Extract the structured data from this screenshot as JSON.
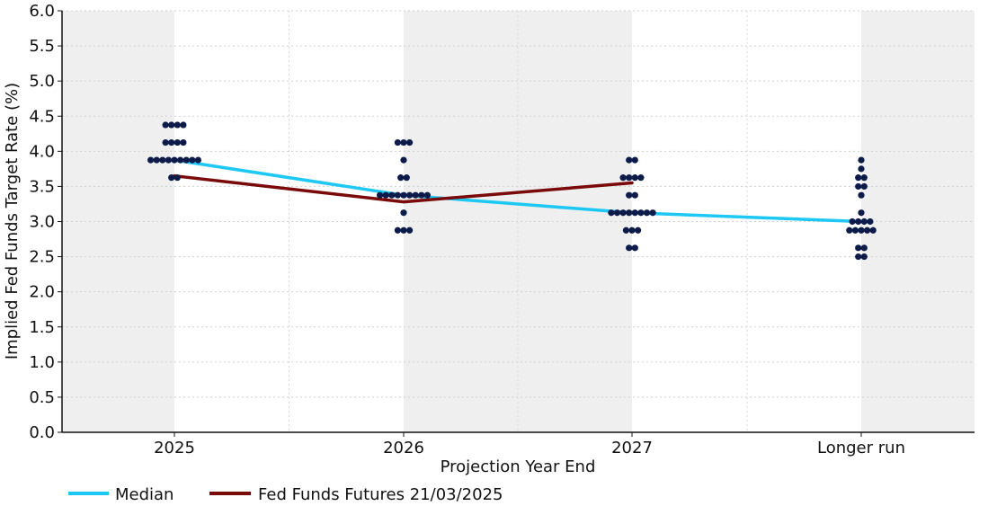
{
  "chart_data": {
    "type": "scatter",
    "title": "",
    "xlabel": "Projection Year End",
    "ylabel": "Implied Fed Funds Target Rate (%)",
    "categories": [
      "2025",
      "2026",
      "2027",
      "Longer run"
    ],
    "yticks": [
      "0.0",
      "0.5",
      "1.0",
      "1.5",
      "2.0",
      "2.5",
      "3.0",
      "3.5",
      "4.0",
      "4.5",
      "5.0",
      "5.5",
      "6.0"
    ],
    "ylim": [
      0,
      6
    ],
    "grid": true,
    "legend_position": "bottom-left",
    "dot_color": "#0d1b4a",
    "alternating_band_color": "#efefef",
    "dots": [
      {
        "category": "2025",
        "rows": [
          {
            "y": 4.375,
            "count": 4
          },
          {
            "y": 4.125,
            "count": 4
          },
          {
            "y": 3.875,
            "count": 9
          },
          {
            "y": 3.625,
            "count": 2
          }
        ]
      },
      {
        "category": "2026",
        "rows": [
          {
            "y": 4.125,
            "count": 3
          },
          {
            "y": 3.875,
            "count": 1
          },
          {
            "y": 3.625,
            "count": 2
          },
          {
            "y": 3.375,
            "count": 9
          },
          {
            "y": 3.125,
            "count": 1
          },
          {
            "y": 2.875,
            "count": 3
          }
        ]
      },
      {
        "category": "2027",
        "rows": [
          {
            "y": 3.875,
            "count": 2
          },
          {
            "y": 3.625,
            "count": 4
          },
          {
            "y": 3.375,
            "count": 2
          },
          {
            "y": 3.125,
            "count": 8
          },
          {
            "y": 2.875,
            "count": 3
          },
          {
            "y": 2.625,
            "count": 2
          }
        ]
      },
      {
        "category": "Longer run",
        "rows": [
          {
            "y": 3.875,
            "count": 1
          },
          {
            "y": 3.75,
            "count": 1
          },
          {
            "y": 3.625,
            "count": 2
          },
          {
            "y": 3.5,
            "count": 2
          },
          {
            "y": 3.375,
            "count": 1
          },
          {
            "y": 3.125,
            "count": 1
          },
          {
            "y": 3.0,
            "count": 4
          },
          {
            "y": 2.875,
            "count": 5
          },
          {
            "y": 2.625,
            "count": 2
          },
          {
            "y": 2.5,
            "count": 2
          }
        ]
      }
    ],
    "series": [
      {
        "name": "Median",
        "color": "#1ec8f5",
        "values": [
          3.875,
          3.375,
          3.125,
          3.0
        ]
      },
      {
        "name": "Fed Funds Futures 21/03/2025",
        "color": "#7a0a0a",
        "values": [
          3.65,
          3.28,
          3.55,
          null
        ]
      }
    ]
  }
}
